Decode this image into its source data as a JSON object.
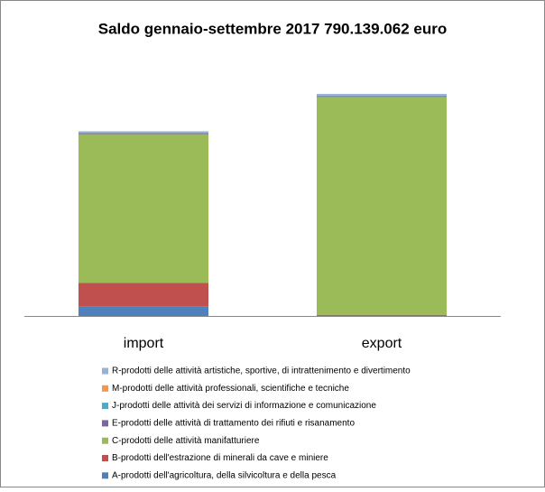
{
  "chart_data": {
    "type": "stacked_bar",
    "title": "Saldo gennaio-settembre 2017 790.139.062 euro",
    "categories": [
      "import",
      "export"
    ],
    "series": [
      {
        "name": "A-prodotti dell'agricoltura, della silvicoltura e della pesca",
        "color": "#4f81bd",
        "values": [
          210000000,
          20000000
        ]
      },
      {
        "name": "B-prodotti dell'estrazione di minerali da cave e miniere",
        "color": "#c0504d",
        "values": [
          500000000,
          5000000
        ]
      },
      {
        "name": "C-prodotti delle attività manifatturiere",
        "color": "#9bbb59",
        "values": [
          3180000000,
          4660000000
        ]
      },
      {
        "name": "E-prodotti delle attività di trattamento dei rifiuti e risanamento",
        "color": "#8064a2",
        "values": [
          20000000,
          20000000
        ]
      },
      {
        "name": "J-prodotti delle attività dei servizi di informazione e comunicazione",
        "color": "#4bacc6",
        "values": [
          5000000,
          10000000
        ]
      },
      {
        "name": "M-prodotti delle attività professionali, scientifiche e tecniche",
        "color": "#f79646",
        "values": [
          5000000,
          5000000
        ]
      },
      {
        "name": "R-prodotti delle attività artistiche, sportive, di intrattenimento e divertimento",
        "color": "#95b3d7",
        "values": [
          30000000,
          30000000
        ]
      }
    ]
  }
}
